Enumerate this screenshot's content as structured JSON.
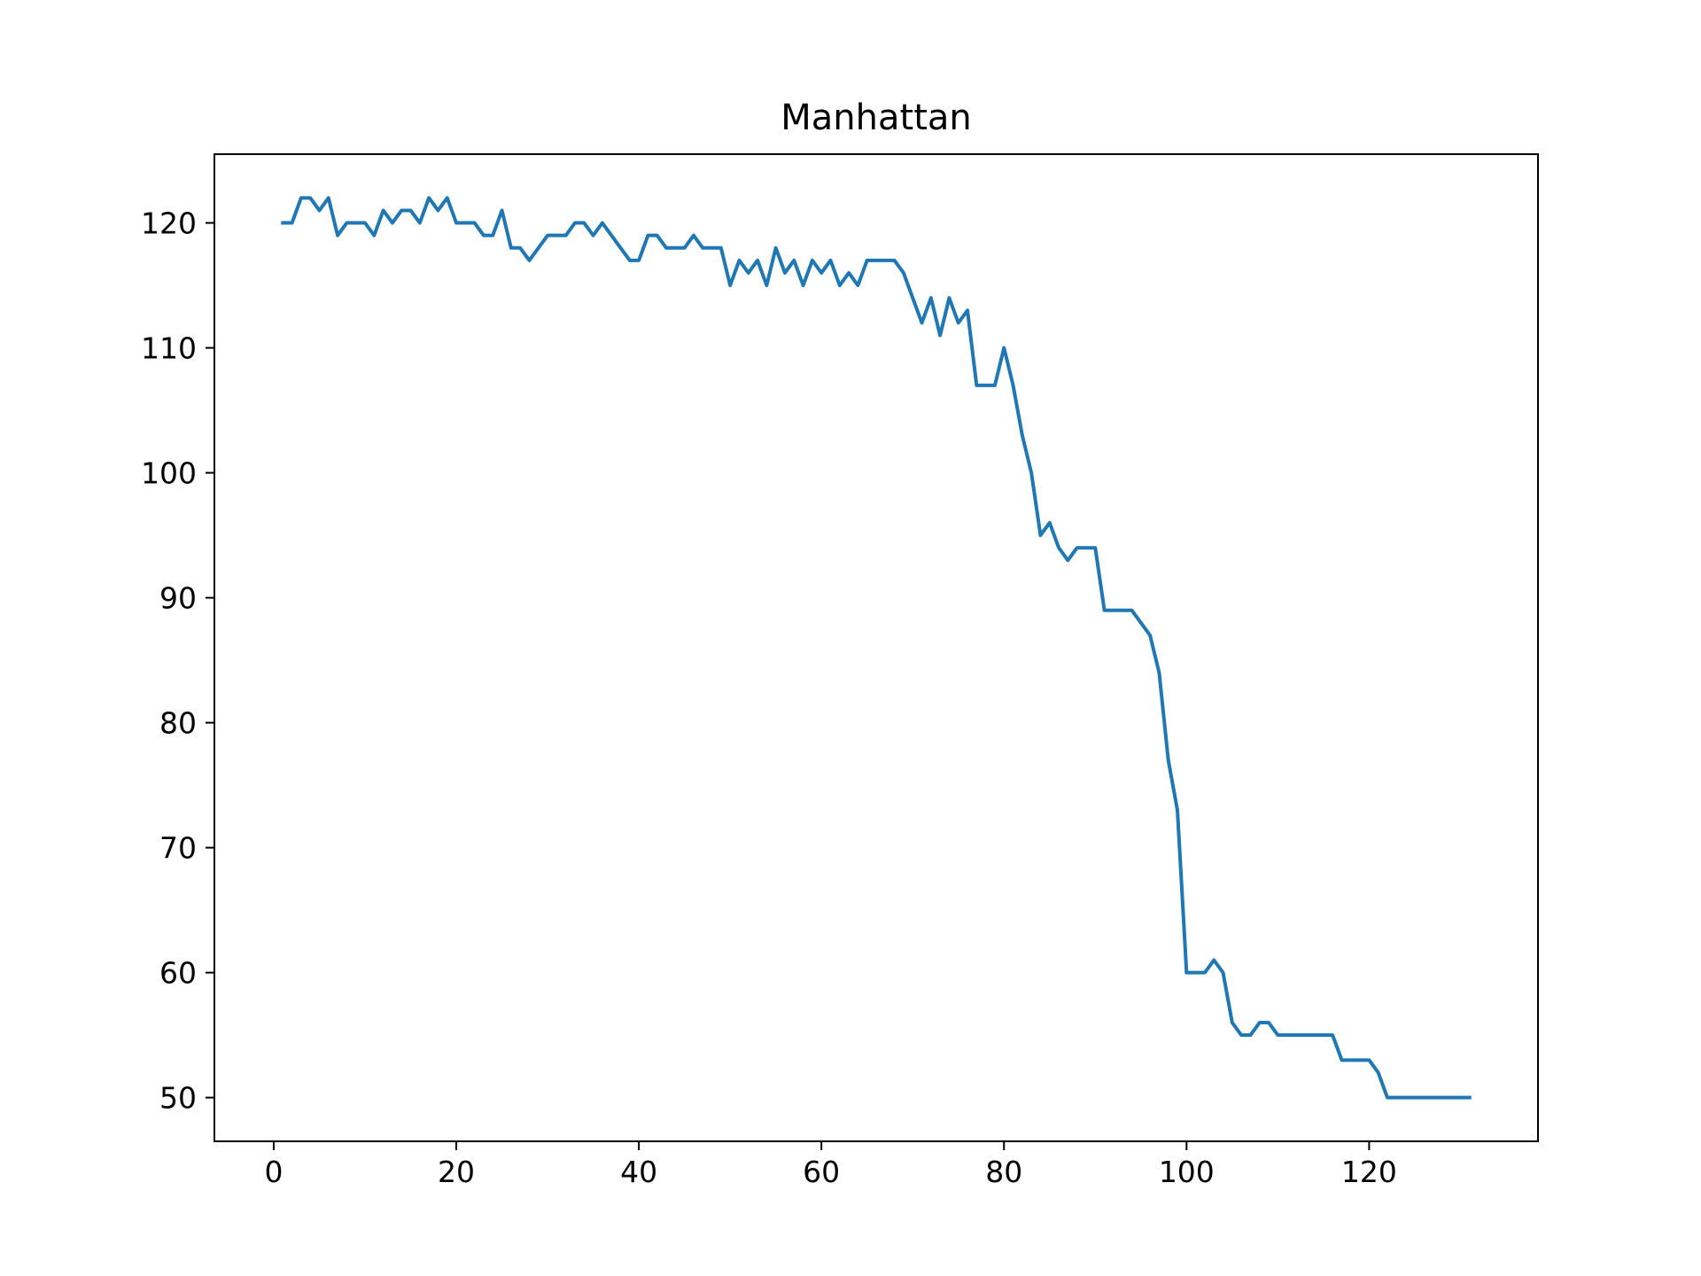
{
  "chart_data": {
    "type": "line",
    "title": "Manhattan",
    "xlabel": "",
    "ylabel": "",
    "xlim": [
      -6.5,
      138.5
    ],
    "ylim": [
      46.5,
      125.5
    ],
    "xticks": [
      0,
      20,
      40,
      60,
      80,
      100,
      120
    ],
    "yticks": [
      50,
      60,
      70,
      80,
      90,
      100,
      110,
      120
    ],
    "grid": false,
    "series": [
      {
        "color": "#1f77b4",
        "x": [
          1,
          2,
          3,
          4,
          5,
          6,
          7,
          8,
          9,
          10,
          11,
          12,
          13,
          14,
          15,
          16,
          17,
          18,
          19,
          20,
          21,
          22,
          23,
          24,
          25,
          26,
          27,
          28,
          29,
          30,
          31,
          32,
          33,
          34,
          35,
          36,
          37,
          38,
          39,
          40,
          41,
          42,
          43,
          44,
          45,
          46,
          47,
          48,
          49,
          50,
          51,
          52,
          53,
          54,
          55,
          56,
          57,
          58,
          59,
          60,
          61,
          62,
          63,
          64,
          65,
          66,
          67,
          68,
          69,
          70,
          71,
          72,
          73,
          74,
          75,
          76,
          77,
          78,
          79,
          80,
          81,
          82,
          83,
          84,
          85,
          86,
          87,
          88,
          89,
          90,
          91,
          92,
          93,
          94,
          95,
          96,
          97,
          98,
          99,
          100,
          101,
          102,
          103,
          104,
          105,
          106,
          107,
          108,
          109,
          110,
          111,
          112,
          113,
          114,
          115,
          116,
          117,
          118,
          119,
          120,
          121,
          122,
          123,
          124,
          125,
          126,
          127,
          128,
          129,
          130,
          131
        ],
        "y": [
          120,
          120,
          122,
          122,
          121,
          122,
          119,
          120,
          120,
          120,
          119,
          121,
          120,
          121,
          121,
          120,
          122,
          121,
          122,
          120,
          120,
          120,
          119,
          119,
          121,
          118,
          118,
          117,
          118,
          119,
          119,
          119,
          120,
          120,
          119,
          120,
          119,
          118,
          117,
          117,
          119,
          119,
          118,
          118,
          118,
          119,
          118,
          118,
          118,
          115,
          117,
          116,
          117,
          115,
          118,
          116,
          117,
          115,
          117,
          116,
          117,
          115,
          116,
          115,
          117,
          117,
          117,
          117,
          116,
          114,
          112,
          114,
          111,
          114,
          112,
          113,
          107,
          107,
          107,
          110,
          107,
          103,
          100,
          95,
          96,
          94,
          93,
          94,
          94,
          94,
          89,
          89,
          89,
          89,
          88,
          87,
          84,
          77,
          73,
          60,
          60,
          60,
          61,
          60,
          56,
          55,
          55,
          56,
          56,
          55,
          55,
          55,
          55,
          55,
          55,
          55,
          53,
          53,
          53,
          53,
          52,
          50,
          50,
          50,
          50,
          50,
          50,
          50,
          50,
          50,
          50
        ]
      }
    ]
  }
}
